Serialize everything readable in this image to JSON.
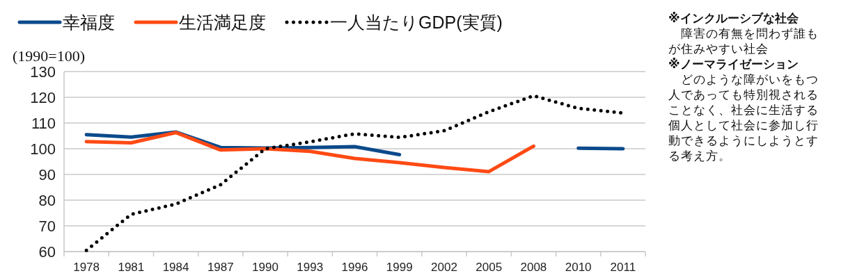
{
  "chart_data": {
    "type": "line",
    "ylabel": "(1990=100)",
    "categories": [
      "1978",
      "1981",
      "1984",
      "1987",
      "1990",
      "1993",
      "1996",
      "1999",
      "2002",
      "2005",
      "2008",
      "2010",
      "2011"
    ],
    "series": [
      {
        "name": "幸福度",
        "color": "#0b4a8b",
        "line_style": "solid",
        "values": [
          105.5,
          104.5,
          106.5,
          100.5,
          100.3,
          100.5,
          100.8,
          97.7,
          null,
          null,
          null,
          100.2,
          100.0
        ]
      },
      {
        "name": "生活満足度",
        "color": "#ff4a14",
        "line_style": "solid",
        "values": [
          102.8,
          102.3,
          106.3,
          99.5,
          100.0,
          99.0,
          96.2,
          94.6,
          92.7,
          91.1,
          101.0,
          null,
          null
        ]
      },
      {
        "name": "一人当たりGDP(実質)",
        "color": "#000000",
        "line_style": "dotted",
        "values": [
          60.5,
          74.5,
          78.5,
          86.0,
          100.0,
          102.7,
          105.8,
          104.4,
          107.0,
          114.4,
          120.6,
          115.7,
          113.9
        ]
      }
    ],
    "ylim": [
      60,
      130
    ],
    "yticks": [
      60,
      70,
      80,
      90,
      100,
      110,
      120,
      130
    ],
    "grid": "y",
    "legend": "top",
    "marker": "none",
    "annotations": [
      "※インクルーシブな社会",
      "　障害の有無を問わず誰もが住みやすい社会",
      "※ノーマライゼーション",
      "　どのような障がいをもつ人であっても特別視されることなく、社会に生活する個人として社会に参加し行動できるようにしようとする考え方。"
    ]
  }
}
